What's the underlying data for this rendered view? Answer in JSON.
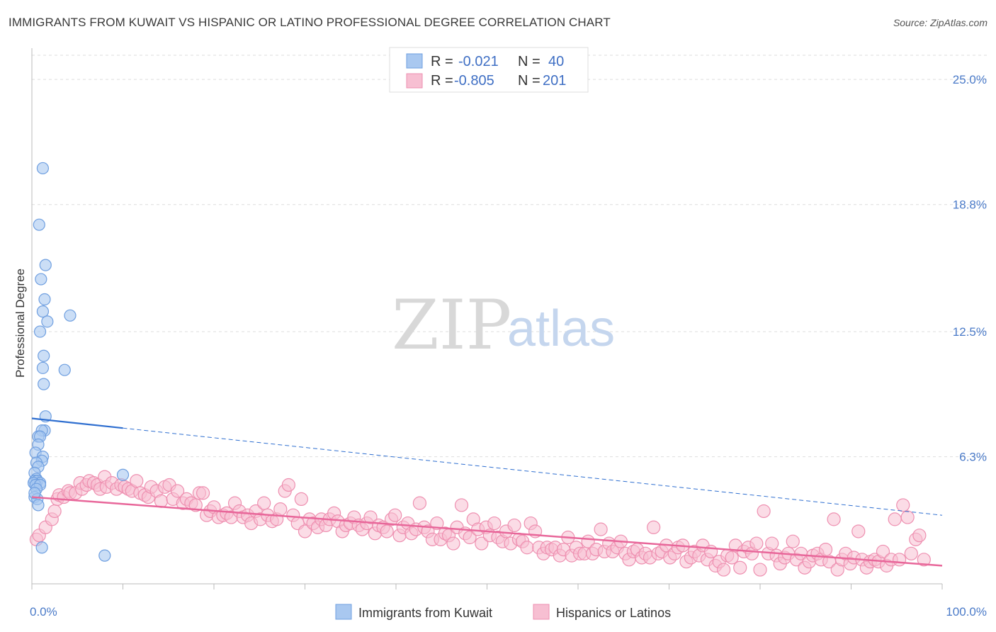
{
  "header": {
    "title": "IMMIGRANTS FROM KUWAIT VS HISPANIC OR LATINO PROFESSIONAL DEGREE CORRELATION CHART",
    "source": "Source: ZipAtlas.com"
  },
  "watermark": {
    "zip": "ZIP",
    "atlas": "atlas"
  },
  "colors": {
    "blue_fill": "#a9c8f0",
    "blue_stroke": "#6f9fe0",
    "blue_line": "#2f6fd0",
    "pink_fill": "#f7bfd2",
    "pink_stroke": "#ee8fb0",
    "pink_line": "#e8679a",
    "grid": "#dddddd",
    "tick_text": "#4a7ac8"
  },
  "legend": {
    "r_label": "R =",
    "n_label": "N =",
    "rows": [
      {
        "r_value": "-0.021",
        "n_value": "40"
      },
      {
        "r_value": "-0.805",
        "n_value": "201"
      }
    ]
  },
  "chart_data": {
    "type": "scatter",
    "title": "IMMIGRANTS FROM KUWAIT VS HISPANIC OR LATINO PROFESSIONAL DEGREE CORRELATION CHART",
    "xlabel": "",
    "ylabel": "Professional Degree",
    "xlim": [
      0,
      100
    ],
    "ylim": [
      0,
      26.2
    ],
    "x_tick_labels": [
      "0.0%",
      "100.0%"
    ],
    "y_ticks": [
      6.3,
      12.5,
      18.8,
      25.0
    ],
    "y_tick_labels": [
      "6.3%",
      "12.5%",
      "18.8%",
      "25.0%"
    ],
    "grid": true,
    "legend_position": "top-center",
    "series": [
      {
        "name": "Immigrants from Kuwait",
        "r": -0.021,
        "n": 40,
        "trend": {
          "x_start": 0,
          "y_start": 8.2,
          "x_solid_end": 10,
          "x_end": 100,
          "y_end": 3.4
        },
        "points": [
          [
            1.2,
            20.6
          ],
          [
            0.8,
            17.8
          ],
          [
            1.5,
            15.8
          ],
          [
            1.0,
            15.1
          ],
          [
            1.4,
            14.1
          ],
          [
            1.2,
            13.5
          ],
          [
            1.7,
            13.0
          ],
          [
            4.2,
            13.3
          ],
          [
            0.9,
            12.5
          ],
          [
            1.3,
            11.3
          ],
          [
            1.2,
            10.7
          ],
          [
            3.6,
            10.6
          ],
          [
            1.3,
            9.9
          ],
          [
            1.5,
            8.3
          ],
          [
            1.4,
            7.6
          ],
          [
            1.1,
            7.6
          ],
          [
            0.7,
            7.3
          ],
          [
            0.9,
            7.3
          ],
          [
            0.7,
            6.9
          ],
          [
            0.4,
            6.5
          ],
          [
            1.2,
            6.3
          ],
          [
            1.1,
            6.1
          ],
          [
            0.5,
            6.0
          ],
          [
            0.7,
            5.8
          ],
          [
            0.3,
            5.5
          ],
          [
            0.5,
            5.2
          ],
          [
            0.3,
            5.1
          ],
          [
            0.6,
            5.1
          ],
          [
            0.9,
            5.0
          ],
          [
            0.2,
            5.0
          ],
          [
            0.4,
            4.9
          ],
          [
            0.9,
            4.9
          ],
          [
            0.5,
            4.7
          ],
          [
            0.3,
            4.3
          ],
          [
            0.6,
            4.2
          ],
          [
            0.7,
            3.9
          ],
          [
            10.0,
            5.4
          ],
          [
            1.1,
            1.8
          ],
          [
            8.0,
            1.4
          ],
          [
            0.3,
            4.5
          ]
        ]
      },
      {
        "name": "Hispanics or Latinos",
        "r": -0.805,
        "n": 201,
        "trend": {
          "x_start": 0,
          "y_start": 4.3,
          "x_end": 100,
          "y_end": 0.9
        },
        "points": [
          [
            0.5,
            2.2
          ],
          [
            0.8,
            2.4
          ],
          [
            1.5,
            2.8
          ],
          [
            2.2,
            3.2
          ],
          [
            2.5,
            3.6
          ],
          [
            2.8,
            4.2
          ],
          [
            3.0,
            4.4
          ],
          [
            3.5,
            4.3
          ],
          [
            4.0,
            4.6
          ],
          [
            4.2,
            4.5
          ],
          [
            4.8,
            4.5
          ],
          [
            5.3,
            5.0
          ],
          [
            5.5,
            4.7
          ],
          [
            6.0,
            4.9
          ],
          [
            6.3,
            5.1
          ],
          [
            6.8,
            5.0
          ],
          [
            7.2,
            4.9
          ],
          [
            7.5,
            4.7
          ],
          [
            8.0,
            5.3
          ],
          [
            8.2,
            4.8
          ],
          [
            8.8,
            5.0
          ],
          [
            9.3,
            4.7
          ],
          [
            9.8,
            4.9
          ],
          [
            10.2,
            4.8
          ],
          [
            10.6,
            4.7
          ],
          [
            11.0,
            4.6
          ],
          [
            11.5,
            5.1
          ],
          [
            11.9,
            4.5
          ],
          [
            12.4,
            4.4
          ],
          [
            12.8,
            4.3
          ],
          [
            13.1,
            4.8
          ],
          [
            13.7,
            4.6
          ],
          [
            14.2,
            4.1
          ],
          [
            14.6,
            4.8
          ],
          [
            15.1,
            4.9
          ],
          [
            15.5,
            4.2
          ],
          [
            16.0,
            4.6
          ],
          [
            16.6,
            4.0
          ],
          [
            17.0,
            4.2
          ],
          [
            17.5,
            4.0
          ],
          [
            18.0,
            3.9
          ],
          [
            18.4,
            4.5
          ],
          [
            18.8,
            4.5
          ],
          [
            19.2,
            3.4
          ],
          [
            19.6,
            3.6
          ],
          [
            20.0,
            3.8
          ],
          [
            20.5,
            3.3
          ],
          [
            21.0,
            3.4
          ],
          [
            21.4,
            3.5
          ],
          [
            21.9,
            3.3
          ],
          [
            22.3,
            4.0
          ],
          [
            22.8,
            3.6
          ],
          [
            23.2,
            3.3
          ],
          [
            23.7,
            3.4
          ],
          [
            24.1,
            3.0
          ],
          [
            24.6,
            3.6
          ],
          [
            25.1,
            3.2
          ],
          [
            25.5,
            4.0
          ],
          [
            25.9,
            3.4
          ],
          [
            26.4,
            3.1
          ],
          [
            26.9,
            3.2
          ],
          [
            27.3,
            3.7
          ],
          [
            27.8,
            4.6
          ],
          [
            28.2,
            4.9
          ],
          [
            28.7,
            3.4
          ],
          [
            29.2,
            3.0
          ],
          [
            29.6,
            4.2
          ],
          [
            30.0,
            2.6
          ],
          [
            30.5,
            3.2
          ],
          [
            30.9,
            3.0
          ],
          [
            31.4,
            2.8
          ],
          [
            31.8,
            3.2
          ],
          [
            32.3,
            2.9
          ],
          [
            32.7,
            3.2
          ],
          [
            33.2,
            3.5
          ],
          [
            33.6,
            3.1
          ],
          [
            34.1,
            2.6
          ],
          [
            34.5,
            2.9
          ],
          [
            35.0,
            3.0
          ],
          [
            35.4,
            3.3
          ],
          [
            35.9,
            2.9
          ],
          [
            36.3,
            2.7
          ],
          [
            36.8,
            3.0
          ],
          [
            37.2,
            3.3
          ],
          [
            37.7,
            2.5
          ],
          [
            38.1,
            2.9
          ],
          [
            38.6,
            2.8
          ],
          [
            39.0,
            2.6
          ],
          [
            39.5,
            3.2
          ],
          [
            39.9,
            3.4
          ],
          [
            40.4,
            2.4
          ],
          [
            40.8,
            2.8
          ],
          [
            41.3,
            3.0
          ],
          [
            41.7,
            2.5
          ],
          [
            42.2,
            2.7
          ],
          [
            42.6,
            4.0
          ],
          [
            43.1,
            2.8
          ],
          [
            43.5,
            2.6
          ],
          [
            44.0,
            2.2
          ],
          [
            44.5,
            3.0
          ],
          [
            44.9,
            2.2
          ],
          [
            45.4,
            2.5
          ],
          [
            45.8,
            2.4
          ],
          [
            46.3,
            2.0
          ],
          [
            46.7,
            2.8
          ],
          [
            47.2,
            3.9
          ],
          [
            47.6,
            2.5
          ],
          [
            48.1,
            2.3
          ],
          [
            48.5,
            3.2
          ],
          [
            49.0,
            2.7
          ],
          [
            49.4,
            2.0
          ],
          [
            49.9,
            2.8
          ],
          [
            50.3,
            2.4
          ],
          [
            50.8,
            3.0
          ],
          [
            51.2,
            2.3
          ],
          [
            51.7,
            2.1
          ],
          [
            52.1,
            2.6
          ],
          [
            52.6,
            2.0
          ],
          [
            53.0,
            2.9
          ],
          [
            53.5,
            2.2
          ],
          [
            53.9,
            2.1
          ],
          [
            54.4,
            1.8
          ],
          [
            54.8,
            3.0
          ],
          [
            55.3,
            2.6
          ],
          [
            55.7,
            1.8
          ],
          [
            56.2,
            1.5
          ],
          [
            56.6,
            1.8
          ],
          [
            57.1,
            1.7
          ],
          [
            57.5,
            1.8
          ],
          [
            58.0,
            1.4
          ],
          [
            58.4,
            1.7
          ],
          [
            58.9,
            2.3
          ],
          [
            59.3,
            1.4
          ],
          [
            59.8,
            1.8
          ],
          [
            60.2,
            1.5
          ],
          [
            60.7,
            1.5
          ],
          [
            61.1,
            2.1
          ],
          [
            61.6,
            1.5
          ],
          [
            62.0,
            1.7
          ],
          [
            62.5,
            2.7
          ],
          [
            62.9,
            1.6
          ],
          [
            63.4,
            2.0
          ],
          [
            63.8,
            1.6
          ],
          [
            64.3,
            1.8
          ],
          [
            64.7,
            2.1
          ],
          [
            65.2,
            1.5
          ],
          [
            65.6,
            1.2
          ],
          [
            66.1,
            1.6
          ],
          [
            66.5,
            1.7
          ],
          [
            67.0,
            1.3
          ],
          [
            67.4,
            1.5
          ],
          [
            67.9,
            1.3
          ],
          [
            68.3,
            2.8
          ],
          [
            68.8,
            1.5
          ],
          [
            69.2,
            1.6
          ],
          [
            69.7,
            1.9
          ],
          [
            70.1,
            1.3
          ],
          [
            70.6,
            1.5
          ],
          [
            71.0,
            1.8
          ],
          [
            71.5,
            1.9
          ],
          [
            71.9,
            1.1
          ],
          [
            72.4,
            1.3
          ],
          [
            72.8,
            1.6
          ],
          [
            73.3,
            1.4
          ],
          [
            73.7,
            1.9
          ],
          [
            74.2,
            1.2
          ],
          [
            74.6,
            1.6
          ],
          [
            75.1,
            0.9
          ],
          [
            75.5,
            1.1
          ],
          [
            76.0,
            0.7
          ],
          [
            76.4,
            1.4
          ],
          [
            76.9,
            1.3
          ],
          [
            77.3,
            1.9
          ],
          [
            77.8,
            0.8
          ],
          [
            78.2,
            1.6
          ],
          [
            78.7,
            1.8
          ],
          [
            79.1,
            1.5
          ],
          [
            79.6,
            2.0
          ],
          [
            80.0,
            0.7
          ],
          [
            80.4,
            3.6
          ],
          [
            80.9,
            1.5
          ],
          [
            81.3,
            2.0
          ],
          [
            81.8,
            1.4
          ],
          [
            82.2,
            1.0
          ],
          [
            82.7,
            1.3
          ],
          [
            83.1,
            1.5
          ],
          [
            83.6,
            2.1
          ],
          [
            84.0,
            1.2
          ],
          [
            84.5,
            1.5
          ],
          [
            84.9,
            0.8
          ],
          [
            85.4,
            1.1
          ],
          [
            85.8,
            1.4
          ],
          [
            86.3,
            1.5
          ],
          [
            86.7,
            1.2
          ],
          [
            87.2,
            1.7
          ],
          [
            87.6,
            1.1
          ],
          [
            88.1,
            3.2
          ],
          [
            88.5,
            0.7
          ],
          [
            89.0,
            1.2
          ],
          [
            89.4,
            1.5
          ],
          [
            89.9,
            1.0
          ],
          [
            90.3,
            1.3
          ],
          [
            90.8,
            2.6
          ],
          [
            91.2,
            1.2
          ],
          [
            91.7,
            0.8
          ],
          [
            92.1,
            1.1
          ],
          [
            92.6,
            1.2
          ],
          [
            93.0,
            1.1
          ],
          [
            93.5,
            1.6
          ],
          [
            93.9,
            0.9
          ],
          [
            94.4,
            1.2
          ],
          [
            94.8,
            3.2
          ],
          [
            95.3,
            1.2
          ],
          [
            95.7,
            3.9
          ],
          [
            96.2,
            3.3
          ],
          [
            96.6,
            1.5
          ],
          [
            97.1,
            2.2
          ],
          [
            97.5,
            2.4
          ],
          [
            98.0,
            1.2
          ]
        ]
      }
    ]
  },
  "bottom_legend": {
    "items": [
      {
        "label": "Immigrants from Kuwait"
      },
      {
        "label": "Hispanics or Latinos"
      }
    ]
  }
}
